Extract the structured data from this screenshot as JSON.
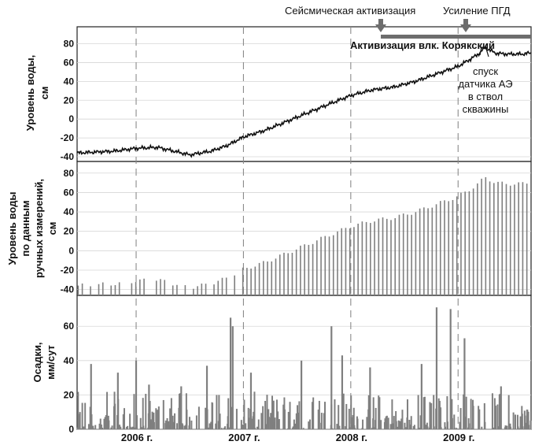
{
  "chart_data": [
    {
      "type": "line",
      "panel": "top",
      "ylabel_lines": [
        "Уровень воды,",
        "см"
      ],
      "ylim": [
        -45,
        98
      ],
      "yticks": [
        -40,
        -20,
        0,
        20,
        40,
        60,
        80
      ],
      "x": [
        "2005.45",
        "2005.8",
        "2006.0",
        "2006.2",
        "2006.35",
        "2006.5",
        "2006.7",
        "2006.85",
        "2007.0",
        "2007.2",
        "2007.5",
        "2007.8",
        "2008.0",
        "2008.2",
        "2008.4",
        "2008.6",
        "2008.8",
        "2009.0",
        "2009.12",
        "2009.2",
        "2009.25",
        "2009.35",
        "2009.45",
        "2009.6",
        "2009.65"
      ],
      "series": [
        {
          "values": [
            -36,
            -34,
            -31,
            -30,
            -34,
            -38,
            -34,
            -28,
            -19,
            -12,
            2,
            16,
            25,
            31,
            34,
            40,
            48,
            56,
            64,
            70,
            76,
            70,
            69,
            69,
            70
          ]
        }
      ],
      "annotations": {
        "volcano": "Активизация влк. Корякский",
        "sensor": [
          "спуск",
          "датчика АЭ",
          "в ствол",
          "скважины"
        ],
        "seismic": "Сейсмическая активизация",
        "pgd": "Усиление ПГД"
      }
    },
    {
      "type": "bar",
      "panel": "middle",
      "ylabel_lines": [
        "Уровень воды",
        "по данным",
        "ручных измерений,",
        "см"
      ],
      "ylim": [
        -46,
        92
      ],
      "yticks": [
        -40,
        -20,
        0,
        20,
        40,
        60,
        80
      ],
      "baseline": -46,
      "x": [
        "2005.45",
        "2005.8",
        "2006.0",
        "2006.2",
        "2006.35",
        "2006.5",
        "2006.7",
        "2006.85",
        "2007.0",
        "2007.2",
        "2007.5",
        "2007.8",
        "2008.0",
        "2008.2",
        "2008.4",
        "2008.6",
        "2008.8",
        "2009.0",
        "2009.12",
        "2009.2",
        "2009.25",
        "2009.35",
        "2009.45",
        "2009.6",
        "2009.65"
      ],
      "values": [
        -36,
        -34,
        -31,
        -30,
        -34,
        -38,
        -34,
        -28,
        -19,
        -12,
        2,
        16,
        25,
        31,
        34,
        40,
        48,
        56,
        64,
        70,
        76,
        70,
        69,
        69,
        70
      ],
      "sample_every_days": 14
    },
    {
      "type": "bar",
      "panel": "bottom",
      "ylabel_lines": [
        "Осадки,",
        "мм/сут"
      ],
      "ylim": [
        0,
        78
      ],
      "yticks": [
        0,
        20,
        40,
        60
      ],
      "xticks": [
        "2006 г.",
        "2007 г.",
        "2008 г.",
        "2009 г."
      ],
      "peaks": [
        {
          "x": "2005.58",
          "value": 38
        },
        {
          "x": "2005.83",
          "value": 33
        },
        {
          "x": "2006.0",
          "value": 40
        },
        {
          "x": "2006.12",
          "value": 26
        },
        {
          "x": "2006.42",
          "value": 25
        },
        {
          "x": "2006.66",
          "value": 37
        },
        {
          "x": "2006.88",
          "value": 65
        },
        {
          "x": "2006.90",
          "value": 60
        },
        {
          "x": "2007.07",
          "value": 33
        },
        {
          "x": "2007.54",
          "value": 40
        },
        {
          "x": "2007.82",
          "value": 60
        },
        {
          "x": "2007.92",
          "value": 43
        },
        {
          "x": "2008.18",
          "value": 36
        },
        {
          "x": "2008.66",
          "value": 38
        },
        {
          "x": "2008.80",
          "value": 71
        },
        {
          "x": "2008.93",
          "value": 70
        },
        {
          "x": "2009.06",
          "value": 53
        },
        {
          "x": "2009.40",
          "value": 25
        }
      ]
    }
  ],
  "colors": {
    "line": "#111111",
    "bar": "#7f7f7f",
    "arrow": "#6d6d6d",
    "grid": "#d6d6d6",
    "year_line": "#8a8a8a"
  }
}
